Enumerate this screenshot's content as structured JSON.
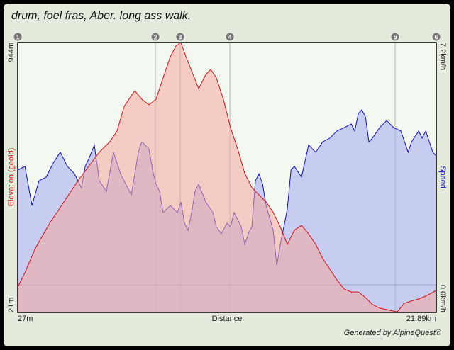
{
  "title": "drum, foel fras, Aber. long ass walk.",
  "footer": "Generated by AlpineQuest©",
  "colors": {
    "elevation_line": "#d41010",
    "elevation_fill": "#f5a8a0",
    "speed_line": "#1010c8",
    "speed_fill": "#a8b0f0",
    "plot_bg": "#f3f8f0"
  },
  "chart_data": {
    "type": "area",
    "xlabel": "Distance",
    "x_tick_labels": [
      "27m",
      "21.89km"
    ],
    "xlim_km": [
      0.027,
      21.89
    ],
    "left_axis": {
      "label": "Elevation (geoid)",
      "min_label": "21m",
      "max_label": "944m",
      "range": [
        21,
        944
      ]
    },
    "right_axis": {
      "label": "Speed",
      "min_label": "0.0km/h",
      "max_label": "7.2km/h",
      "range": [
        0,
        7.2
      ]
    },
    "markers": [
      {
        "label": "1",
        "x": 0.03
      },
      {
        "label": "2",
        "x": 7.22
      },
      {
        "label": "3",
        "x": 8.51
      },
      {
        "label": "4",
        "x": 11.11
      },
      {
        "label": "5",
        "x": 19.74
      },
      {
        "label": "6",
        "x": 21.89
      }
    ],
    "series": [
      {
        "name": "Elevation",
        "axis": "left",
        "x": [
          0.03,
          0.4,
          0.95,
          1.69,
          2.44,
          3.18,
          3.73,
          4.29,
          4.84,
          5.21,
          5.59,
          5.96,
          6.14,
          6.51,
          6.88,
          7.25,
          7.62,
          8.0,
          8.29,
          8.55,
          8.81,
          9.11,
          9.48,
          9.85,
          10.11,
          10.4,
          10.77,
          11.14,
          11.51,
          11.89,
          12.26,
          12.63,
          13.0,
          13.37,
          13.74,
          14.11,
          14.48,
          14.85,
          15.22,
          15.59,
          15.96,
          16.33,
          16.7,
          17.08,
          17.45,
          17.82,
          18.19,
          18.56,
          18.93,
          19.48,
          19.85,
          20.22,
          20.59,
          20.97,
          21.34,
          21.89
        ],
        "y": [
          108,
          157,
          241,
          326,
          399,
          472,
          520,
          569,
          605,
          641,
          726,
          762,
          779,
          750,
          731,
          750,
          823,
          896,
          932,
          944,
          896,
          847,
          786,
          835,
          852,
          823,
          750,
          653,
          581,
          496,
          448,
          423,
          399,
          363,
          314,
          254,
          302,
          319,
          290,
          254,
          205,
          169,
          132,
          101,
          91,
          91,
          72,
          48,
          36,
          28,
          23,
          52,
          60,
          67,
          77,
          96
        ]
      },
      {
        "name": "Speed",
        "axis": "right",
        "x": [
          0.03,
          0.4,
          0.77,
          1.14,
          1.51,
          1.88,
          2.25,
          2.62,
          2.99,
          3.36,
          3.55,
          3.73,
          4.03,
          4.29,
          4.66,
          5.03,
          5.4,
          5.77,
          5.96,
          6.33,
          6.51,
          6.88,
          7.07,
          7.25,
          7.44,
          7.62,
          8.0,
          8.37,
          8.55,
          8.74,
          8.92,
          9.11,
          9.29,
          9.48,
          9.85,
          10.22,
          10.4,
          10.66,
          10.96,
          11.14,
          11.33,
          11.7,
          11.89,
          12.07,
          12.26,
          12.44,
          12.63,
          12.82,
          13.0,
          13.37,
          13.56,
          13.74,
          13.93,
          14.11,
          14.3,
          14.48,
          14.85,
          15.22,
          15.59,
          15.96,
          16.33,
          16.7,
          17.08,
          17.45,
          17.63,
          17.82,
          18.0,
          18.19,
          18.37,
          18.56,
          18.93,
          19.3,
          19.67,
          20.04,
          20.42,
          20.6,
          20.97,
          21.15,
          21.34,
          21.71,
          21.89
        ],
        "y": [
          3.41,
          3.52,
          2.36,
          3.09,
          3.2,
          3.62,
          3.94,
          3.52,
          3.3,
          2.88,
          3.52,
          3.73,
          4.15,
          3.09,
          2.78,
          3.94,
          3.3,
          2.88,
          2.67,
          3.94,
          4.25,
          4.04,
          3.41,
          2.99,
          2.78,
          2.15,
          2.36,
          2.15,
          2.46,
          1.83,
          1.62,
          2.15,
          2.78,
          2.99,
          2.46,
          2.15,
          1.73,
          1.52,
          1.83,
          1.73,
          2.15,
          1.73,
          1.2,
          1.52,
          1.73,
          3.09,
          3.3,
          2.99,
          2.36,
          1.62,
          0.57,
          1.2,
          1.73,
          2.25,
          3.41,
          3.52,
          3.2,
          4.15,
          3.94,
          4.25,
          4.36,
          4.57,
          4.67,
          4.78,
          4.57,
          5.09,
          5.2,
          4.99,
          4.25,
          4.36,
          4.67,
          4.88,
          4.67,
          4.57,
          3.94,
          4.25,
          4.57,
          4.36,
          4.57,
          3.94,
          3.83
        ]
      }
    ]
  }
}
